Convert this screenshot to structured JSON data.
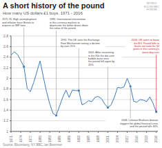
{
  "chart_data": {
    "type": "line",
    "title": "A short history of the pound",
    "subtitle": "How many US dollars £1 buys, 1971 - 2016",
    "source": "Source: Bloomberg, NY BBC, Ian Bremmer",
    "logo": "WORLD\nECONOMIC\nFORUM",
    "x": [
      1971,
      1972,
      1973,
      1974,
      1975,
      1976,
      1977,
      1978,
      1979,
      1980,
      1981,
      1982,
      1983,
      1984,
      1985,
      1986,
      1987,
      1988,
      1989,
      1990,
      1991,
      1992,
      1993,
      1994,
      1995,
      1996,
      1997,
      1998,
      1999,
      2000,
      2001,
      2002,
      2003,
      2004,
      2005,
      2006,
      2007,
      2008,
      2009,
      2010,
      2011,
      2012,
      2013,
      2014,
      2015,
      2016
    ],
    "values": [
      2.44,
      2.5,
      2.45,
      2.34,
      2.22,
      1.81,
      1.75,
      1.92,
      2.12,
      2.33,
      2.03,
      1.75,
      1.52,
      1.34,
      1.3,
      1.47,
      1.64,
      1.78,
      1.64,
      1.78,
      1.77,
      1.77,
      1.5,
      1.53,
      1.58,
      1.56,
      1.64,
      1.66,
      1.62,
      1.52,
      1.45,
      1.5,
      1.64,
      1.83,
      1.82,
      1.84,
      2.0,
      1.85,
      1.57,
      1.55,
      1.6,
      1.59,
      1.56,
      1.65,
      1.53,
      1.37
    ],
    "color": "#3a7bbf",
    "xlim": [
      1971,
      2016.5
    ],
    "xticks": [
      1971,
      1974,
      1977,
      1980,
      1983,
      1986,
      1989,
      1992,
      1995,
      1998,
      2001,
      2004,
      2007,
      2010,
      2013,
      2016
    ],
    "ylim": [
      1,
      2.8
    ],
    "yticks": [
      1,
      1.2,
      1.4,
      1.6,
      1.8,
      2,
      2.2,
      2.4,
      2.6,
      2.8
    ],
    "grid": true,
    "annotations": [
      {
        "x": 1975,
        "y": 2.22,
        "text": "1975-76: High unemployment\nand inflation force Britain to\nrequest an IMF loan"
      },
      {
        "x": 1985,
        "y": 1.3,
        "text": "1985: International intervention\nin the currency markets to\ndepreciate the dollar drives down\nthe value of the pound"
      },
      {
        "x": 1992,
        "y": 1.77,
        "text": "1992: The UK exits the Exchange\nRate Mechanism seeing a decline\nby over 25%"
      },
      {
        "x": 2001,
        "y": 1.45,
        "text": "2001: After recovering\nin the 90s the dot-com\nbubble burst sees\nthe pound fall again by\n20%"
      },
      {
        "x": 2008,
        "y": 1.85,
        "text": "2008: Lehman Brothers demise\ntriggers the global financial crisis\nand the pound falls 30%"
      },
      {
        "x": 2016,
        "y": 1.37,
        "text": "2016: UK votes to leave\nthe EU. Pound falls to\nlevels not seen for 30\nyears in the currency's\nworst day ever",
        "color": "#cc2222"
      }
    ]
  }
}
